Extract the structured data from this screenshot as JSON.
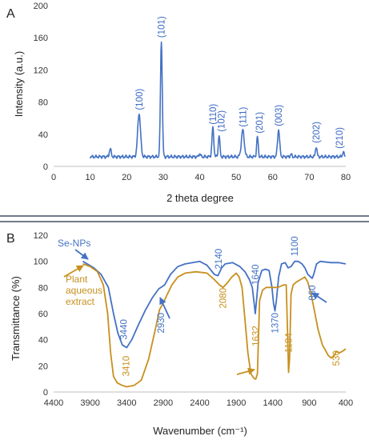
{
  "chart_data": [
    {
      "panel": "A",
      "type": "line",
      "xlabel": "2 theta degree",
      "ylabel": "Intensity (a.u.)",
      "xlim": [
        0,
        80
      ],
      "ylim": [
        0,
        200
      ],
      "x_ticks": [
        0,
        10,
        20,
        30,
        40,
        50,
        60,
        70,
        80
      ],
      "y_ticks": [
        0,
        40,
        80,
        120,
        160,
        200
      ],
      "grid": false,
      "series": [
        {
          "color": "#4472c4",
          "baseline": 12,
          "peaks": [
            {
              "x": 15.5,
              "y": 22,
              "w": 0.35
            },
            {
              "x": 23.4,
              "y": 66,
              "w": 0.55
            },
            {
              "x": 29.5,
              "y": 155,
              "w": 0.35
            },
            {
              "x": 40.0,
              "y": 16,
              "w": 0.3
            },
            {
              "x": 43.6,
              "y": 48,
              "w": 0.35
            },
            {
              "x": 45.3,
              "y": 39,
              "w": 0.3
            },
            {
              "x": 51.8,
              "y": 45,
              "w": 0.55
            },
            {
              "x": 55.8,
              "y": 37,
              "w": 0.3
            },
            {
              "x": 61.6,
              "y": 46,
              "w": 0.4
            },
            {
              "x": 65.0,
              "y": 15,
              "w": 0.3
            },
            {
              "x": 71.9,
              "y": 25,
              "w": 0.3
            },
            {
              "x": 79.3,
              "y": 18,
              "w": 0.3
            }
          ]
        }
      ],
      "annotations": [
        {
          "text": "(100)",
          "x": 23.4,
          "y": 70
        },
        {
          "text": "(101)",
          "x": 29.5,
          "y": 160
        },
        {
          "text": "(110)",
          "x": 43.6,
          "y": 52
        },
        {
          "text": "(102)",
          "x": 45.9,
          "y": 43
        },
        {
          "text": "(111)",
          "x": 51.8,
          "y": 49
        },
        {
          "text": "(201)",
          "x": 56.3,
          "y": 41
        },
        {
          "text": "(003)",
          "x": 61.6,
          "y": 50
        },
        {
          "text": "(202)",
          "x": 71.9,
          "y": 29
        },
        {
          "text": "(210)",
          "x": 78.3,
          "y": 22
        }
      ]
    },
    {
      "panel": "B",
      "type": "line",
      "xlabel": "Wavenumber (cm⁻¹)",
      "ylabel": "Transmittance (%)",
      "xlim": [
        4400,
        400
      ],
      "x_reversed": true,
      "ylim": [
        0,
        120
      ],
      "x_ticks": [
        4400,
        3900,
        3400,
        2900,
        2400,
        1900,
        1400,
        900,
        400
      ],
      "y_ticks": [
        0,
        20,
        40,
        60,
        80,
        100,
        120
      ],
      "grid": false,
      "series": [
        {
          "name": "Se-NPs",
          "color": "#4472c4",
          "points": [
            [
              4000,
              100
            ],
            [
              3850,
              95
            ],
            [
              3750,
              90
            ],
            [
              3650,
              80
            ],
            [
              3580,
              60
            ],
            [
              3520,
              45
            ],
            [
              3460,
              36
            ],
            [
              3400,
              34
            ],
            [
              3330,
              40
            ],
            [
              3250,
              50
            ],
            [
              3150,
              62
            ],
            [
              3050,
              72
            ],
            [
              2960,
              79
            ],
            [
              2930,
              80
            ],
            [
              2880,
              82
            ],
            [
              2800,
              90
            ],
            [
              2700,
              96
            ],
            [
              2600,
              98
            ],
            [
              2400,
              100
            ],
            [
              2300,
              97
            ],
            [
              2200,
              90
            ],
            [
              2150,
              89
            ],
            [
              2100,
              95
            ],
            [
              2050,
              98
            ],
            [
              1950,
              99
            ],
            [
              1850,
              96
            ],
            [
              1780,
              92
            ],
            [
              1720,
              86
            ],
            [
              1680,
              80
            ],
            [
              1655,
              68
            ],
            [
              1640,
              60
            ],
            [
              1625,
              68
            ],
            [
              1600,
              84
            ],
            [
              1550,
              93
            ],
            [
              1500,
              94
            ],
            [
              1450,
              93
            ],
            [
              1410,
              80
            ],
            [
              1390,
              68
            ],
            [
              1370,
              62
            ],
            [
              1350,
              70
            ],
            [
              1320,
              88
            ],
            [
              1280,
              98
            ],
            [
              1230,
              99
            ],
            [
              1190,
              95
            ],
            [
              1150,
              96
            ],
            [
              1100,
              100
            ],
            [
              1050,
              100
            ],
            [
              1000,
              98
            ],
            [
              960,
              95
            ],
            [
              920,
              90
            ],
            [
              880,
              88
            ],
            [
              860,
              87
            ],
            [
              840,
              90
            ],
            [
              800,
              98
            ],
            [
              750,
              100
            ],
            [
              600,
              99
            ],
            [
              500,
              99
            ],
            [
              400,
              98
            ]
          ]
        },
        {
          "name": "Plant aqueous extract",
          "color": "#c8901e",
          "points": [
            [
              4000,
              98
            ],
            [
              3900,
              96
            ],
            [
              3800,
              92
            ],
            [
              3720,
              82
            ],
            [
              3660,
              60
            ],
            [
              3620,
              30
            ],
            [
              3580,
              12
            ],
            [
              3530,
              7
            ],
            [
              3460,
              5
            ],
            [
              3400,
              4
            ],
            [
              3300,
              5
            ],
            [
              3200,
              9
            ],
            [
              3100,
              25
            ],
            [
              3000,
              50
            ],
            [
              2950,
              63
            ],
            [
              2900,
              68
            ],
            [
              2850,
              74
            ],
            [
              2780,
              82
            ],
            [
              2700,
              88
            ],
            [
              2600,
              91
            ],
            [
              2450,
              92
            ],
            [
              2300,
              91
            ],
            [
              2200,
              86
            ],
            [
              2130,
              82
            ],
            [
              2080,
              80
            ],
            [
              2030,
              83
            ],
            [
              1960,
              88
            ],
            [
              1900,
              91
            ],
            [
              1860,
              88
            ],
            [
              1820,
              80
            ],
            [
              1780,
              55
            ],
            [
              1740,
              30
            ],
            [
              1700,
              14
            ],
            [
              1665,
              11
            ],
            [
              1645,
              10
            ],
            [
              1632,
              10
            ],
            [
              1610,
              14
            ],
            [
              1580,
              70
            ],
            [
              1540,
              78
            ],
            [
              1490,
              80
            ],
            [
              1430,
              80
            ],
            [
              1400,
              80
            ],
            [
              1370,
              80
            ],
            [
              1330,
              80
            ],
            [
              1290,
              81
            ],
            [
              1250,
              82
            ],
            [
              1215,
              82
            ],
            [
              1195,
              40
            ],
            [
              1184,
              15
            ],
            [
              1170,
              25
            ],
            [
              1150,
              75
            ],
            [
              1120,
              82
            ],
            [
              1080,
              84
            ],
            [
              1020,
              86
            ],
            [
              960,
              88
            ],
            [
              920,
              84
            ],
            [
              880,
              76
            ],
            [
              840,
              65
            ],
            [
              780,
              48
            ],
            [
              720,
              36
            ],
            [
              680,
              32
            ],
            [
              640,
              28
            ],
            [
              600,
              26
            ],
            [
              560,
              28
            ],
            [
              530,
              31
            ],
            [
              490,
              30
            ],
            [
              450,
              31
            ],
            [
              400,
              33
            ]
          ]
        }
      ],
      "annotations": [
        {
          "text": "3440",
          "x": 3440,
          "y": 40,
          "color": "#4472c4"
        },
        {
          "text": "2930",
          "x": 2930,
          "y": 45,
          "color": "#4472c4"
        },
        {
          "text": "2140",
          "x": 2140,
          "y": 94,
          "color": "#4472c4"
        },
        {
          "text": "1640",
          "x": 1640,
          "y": 82,
          "color": "#4472c4"
        },
        {
          "text": "1370",
          "x": 1370,
          "y": 45,
          "color": "#4472c4"
        },
        {
          "text": "1100",
          "x": 1100,
          "y": 104,
          "color": "#4472c4"
        },
        {
          "text": "860",
          "x": 860,
          "y": 70,
          "color": "#4472c4"
        },
        {
          "text": "3410",
          "x": 3410,
          "y": 12,
          "color": "#c8901e"
        },
        {
          "text": "2080",
          "x": 2080,
          "y": 64,
          "color": "#c8901e"
        },
        {
          "text": "1632",
          "x": 1632,
          "y": 35,
          "color": "#c8901e"
        },
        {
          "text": "1184",
          "x": 1184,
          "y": 30,
          "color": "#c8901e"
        },
        {
          "text": "530",
          "x": 530,
          "y": 20,
          "color": "#c8901e"
        }
      ],
      "legend_labels": [
        {
          "text": "Se-NPs",
          "color": "#4472c4"
        },
        {
          "text": "Plant",
          "color": "#c8901e"
        },
        {
          "text": "aqueous",
          "color": "#c8901e"
        },
        {
          "text": "extract",
          "color": "#c8901e"
        }
      ]
    }
  ]
}
